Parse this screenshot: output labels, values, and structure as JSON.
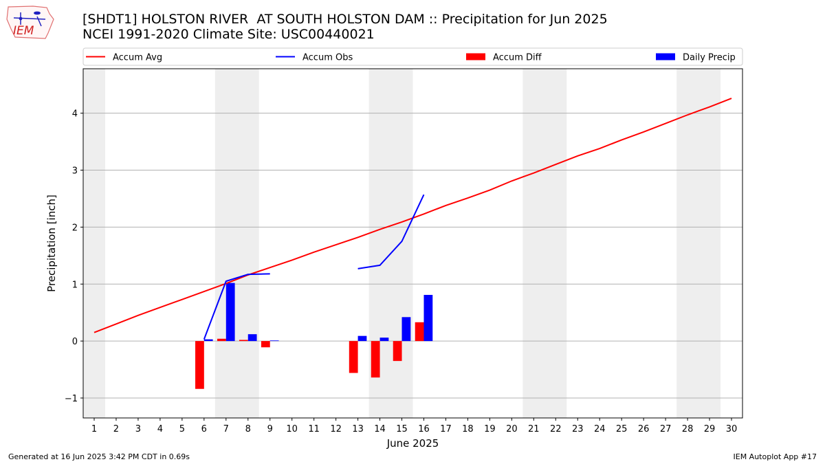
{
  "header": {
    "title": "[SHDT1] HOLSTON RIVER  AT SOUTH HOLSTON DAM :: Precipitation for Jun 2025",
    "subtitle": "NCEI 1991-2020 Climate Site: USC00440021",
    "logo_text": "IEM"
  },
  "footer": {
    "left": "Generated at 16 Jun 2025 3:42 PM CDT in 0.69s",
    "right": "IEM Autoplot App #17"
  },
  "colors": {
    "avg": "#ff0000",
    "obs": "#0000ff",
    "diff": "#ff0000",
    "daily": "#0000ff",
    "weekend": "#eeeeee",
    "grid": "#b0b0b0"
  },
  "chart_data": {
    "type": "bar",
    "title": "[SHDT1] HOLSTON RIVER  AT SOUTH HOLSTON DAM :: Precipitation for Jun 2025",
    "xlabel": "June 2025",
    "ylabel": "Precipitation [inch]",
    "xlim": [
      0.5,
      30.5
    ],
    "ylim": [
      -1.35,
      4.78
    ],
    "yticks": [
      -1,
      0,
      1,
      2,
      3,
      4
    ],
    "ytick_labels": [
      "−1",
      "0",
      "1",
      "2",
      "3",
      "4"
    ],
    "days": [
      1,
      2,
      3,
      4,
      5,
      6,
      7,
      8,
      9,
      10,
      11,
      12,
      13,
      14,
      15,
      16,
      17,
      18,
      19,
      20,
      21,
      22,
      23,
      24,
      25,
      26,
      27,
      28,
      29,
      30
    ],
    "weekend_spans": [
      [
        0.5,
        1.5
      ],
      [
        6.5,
        8.5
      ],
      [
        13.5,
        15.5
      ],
      [
        20.5,
        22.5
      ],
      [
        27.5,
        29.5
      ]
    ],
    "legend": [
      "Accum Avg",
      "Accum Obs",
      "Accum Diff",
      "Daily Precip"
    ],
    "series": [
      {
        "name": "Accum Avg",
        "kind": "line",
        "x": [
          1,
          2,
          3,
          4,
          5,
          6,
          7,
          8,
          9,
          10,
          11,
          12,
          13,
          14,
          15,
          16,
          17,
          18,
          19,
          20,
          21,
          22,
          23,
          24,
          25,
          26,
          27,
          28,
          29,
          30
        ],
        "values": [
          0.15,
          0.3,
          0.45,
          0.59,
          0.73,
          0.87,
          1.01,
          1.16,
          1.29,
          1.42,
          1.56,
          1.69,
          1.82,
          1.96,
          2.09,
          2.23,
          2.38,
          2.51,
          2.65,
          2.81,
          2.95,
          3.1,
          3.25,
          3.38,
          3.53,
          3.67,
          3.82,
          3.97,
          4.11,
          4.26
        ]
      },
      {
        "name": "Accum Obs",
        "kind": "line",
        "x": [
          6,
          7,
          8,
          9,
          13,
          14,
          15,
          16
        ],
        "values": [
          0.03,
          1.05,
          1.17,
          1.18,
          1.27,
          1.33,
          1.75,
          2.57
        ],
        "segments": [
          [
            6,
            7,
            8,
            9
          ],
          [
            13,
            14,
            15,
            16
          ]
        ]
      },
      {
        "name": "Accum Diff",
        "kind": "bar",
        "x": [
          6,
          7,
          8,
          9,
          13,
          14,
          15,
          16
        ],
        "values": [
          -0.84,
          0.04,
          0.02,
          -0.11,
          -0.56,
          -0.64,
          -0.35,
          0.33
        ]
      },
      {
        "name": "Daily Precip",
        "kind": "bar",
        "x": [
          6,
          7,
          8,
          9,
          13,
          14,
          15,
          16
        ],
        "values": [
          0.03,
          1.02,
          0.12,
          0.01,
          0.09,
          0.06,
          0.42,
          0.81
        ]
      }
    ]
  }
}
